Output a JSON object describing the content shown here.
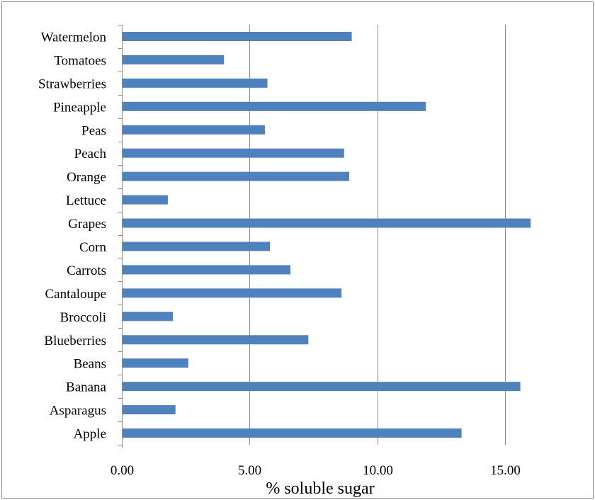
{
  "chart_data": {
    "type": "bar",
    "orientation": "horizontal",
    "title": "",
    "xlabel": "% soluble sugar",
    "ylabel": "",
    "xlim": [
      0,
      16
    ],
    "xticks": [
      0,
      5,
      10,
      15
    ],
    "xtick_labels": [
      "0.00",
      "5.00",
      "10.00",
      "15.00"
    ],
    "grid": "vertical major gridlines",
    "legend": "none",
    "bar_color": "#4f81bd",
    "categories": [
      "Apple",
      "Asparagus",
      "Banana",
      "Beans",
      "Blueberries",
      "Broccoli",
      "Cantaloupe",
      "Carrots",
      "Corn",
      "Grapes",
      "Lettuce",
      "Orange",
      "Peach",
      "Peas",
      "Pineapple",
      "Strawberries",
      "Tomatoes",
      "Watermelon"
    ],
    "values": [
      13.3,
      2.1,
      15.6,
      2.6,
      7.3,
      2.0,
      8.6,
      6.6,
      5.8,
      16.0,
      1.8,
      8.9,
      8.7,
      5.6,
      11.9,
      5.7,
      4.0,
      9.0
    ]
  }
}
